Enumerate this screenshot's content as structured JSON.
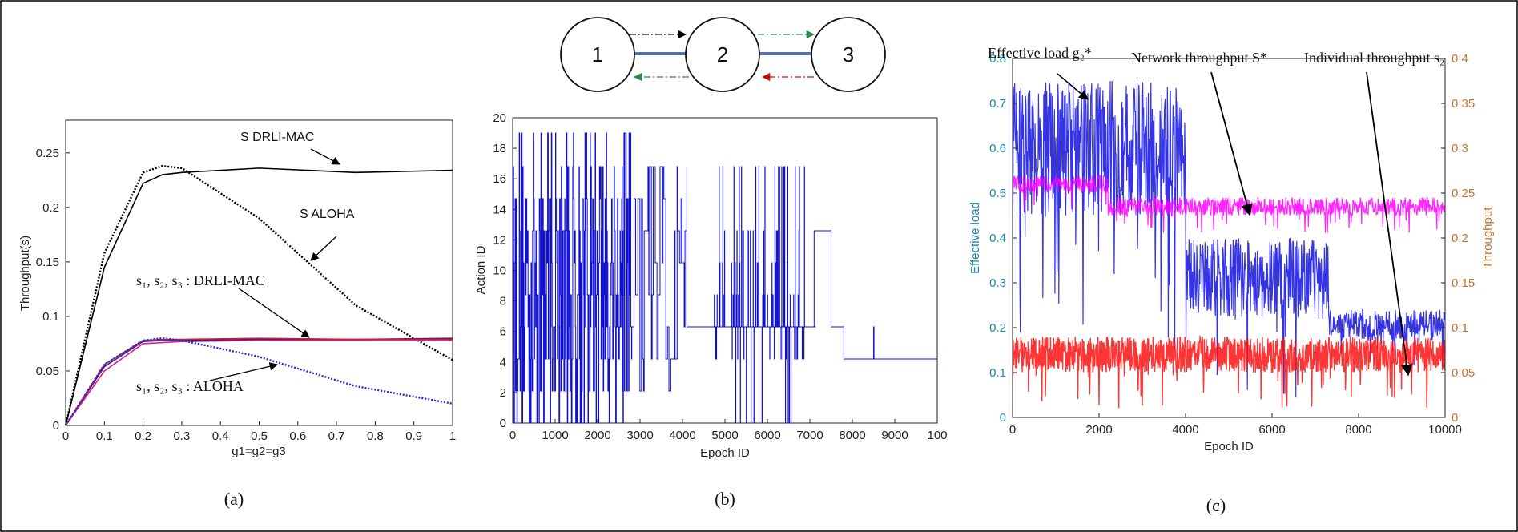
{
  "chart_data": [
    {
      "type": "line",
      "caption": "(a)",
      "xlabel": "g1=g2=g3",
      "ylabel": "Throughput(s)",
      "xlim": [
        0,
        1
      ],
      "ylim": [
        0,
        0.28
      ],
      "xticks": [
        "0",
        "0.1",
        "0.2",
        "0.3",
        "0.4",
        "0.5",
        "0.6",
        "0.7",
        "0.8",
        "0.9",
        "1"
      ],
      "yticks": [
        "0",
        "0.05",
        "0.1",
        "0.15",
        "0.2",
        "0.25"
      ],
      "x": [
        0,
        0.1,
        0.2,
        0.25,
        0.3,
        0.5,
        0.75,
        1.0
      ],
      "series": [
        {
          "name": "S DRLI-MAC",
          "color": "#000000",
          "style": "solid",
          "values": [
            0,
            0.145,
            0.222,
            0.23,
            0.232,
            0.236,
            0.232,
            0.234
          ]
        },
        {
          "name": "S ALOHA",
          "color": "#000000",
          "style": "dotted",
          "values": [
            0,
            0.158,
            0.232,
            0.238,
            0.236,
            0.19,
            0.11,
            0.06
          ]
        },
        {
          "color": "#e0208a",
          "style": "solid",
          "values": [
            0,
            0.05,
            0.075,
            0.076,
            0.077,
            0.078,
            0.078,
            0.078
          ]
        },
        {
          "color": "#2a2a8a",
          "style": "solid",
          "values": [
            0,
            0.054,
            0.077,
            0.078,
            0.078,
            0.079,
            0.079,
            0.08
          ]
        },
        {
          "color": "#d02020",
          "style": "solid",
          "values": [
            0,
            0.056,
            0.078,
            0.079,
            0.079,
            0.08,
            0.079,
            0.079
          ]
        },
        {
          "color": "#2a2ad0",
          "style": "dotted",
          "values": [
            0,
            0.056,
            0.078,
            0.08,
            0.078,
            0.063,
            0.036,
            0.02
          ]
        }
      ],
      "annotations": [
        {
          "text": "S DRLI-MAC"
        },
        {
          "text": "S ALOHA"
        },
        {
          "text": "s₁, s₂, s₃ : DRLI-MAC"
        },
        {
          "text": "s₁, s₂, s₃ : ALOHA"
        }
      ]
    },
    {
      "type": "line",
      "caption": "(b)",
      "xlabel": "Epoch ID",
      "ylabel": "Action ID",
      "xlim": [
        0,
        10000
      ],
      "ylim": [
        0,
        20
      ],
      "xticks": [
        "0",
        "1000",
        "2000",
        "3000",
        "4000",
        "5000",
        "6000",
        "7000",
        "8000",
        "9000",
        "100"
      ],
      "yticks": [
        "0",
        "2",
        "4",
        "6",
        "8",
        "10",
        "12",
        "14",
        "16",
        "18",
        "20"
      ],
      "series": [
        {
          "color": "#1010d0",
          "style": "solid",
          "segments": [
            {
              "x": [
                0,
                2800
              ],
              "y": [
                0,
                19
              ],
              "desc": "dense switching between all actions"
            },
            {
              "x": [
                2800,
                4100
              ],
              "y": [
                0,
                17
              ],
              "desc": "sparse switching"
            },
            {
              "x": [
                4100,
                7100
              ],
              "y": [
                6.3,
                6.3
              ],
              "desc": "mostly constant with spikes"
            },
            {
              "x": [
                7100,
                7500
              ],
              "y": [
                12.6,
                12.6
              ]
            },
            {
              "x": [
                7500,
                7800
              ],
              "y": [
                6.3,
                6.3
              ]
            },
            {
              "x": [
                7800,
                10000
              ],
              "y": [
                4.2,
                4.2
              ]
            }
          ]
        }
      ]
    },
    {
      "type": "line",
      "caption": "(c)",
      "xlabel": "Epoch ID",
      "ylabel": "Effective load",
      "ylabel_right": "Throughput",
      "xlim": [
        0,
        10000
      ],
      "ylim": [
        0,
        0.8
      ],
      "ylim_right": [
        0,
        0.4
      ],
      "xticks": [
        "0",
        "2000",
        "4000",
        "6000",
        "8000",
        "10000"
      ],
      "yticks": [
        "0",
        "0.1",
        "0.2",
        "0.3",
        "0.4",
        "0.5",
        "0.6",
        "0.7",
        "0.8"
      ],
      "yticks_right": [
        "0",
        "0.05",
        "0.1",
        "0.15",
        "0.2",
        "0.25",
        "0.3",
        "0.35",
        "0.4"
      ],
      "series": [
        {
          "axis": "left",
          "color": "#1010e0",
          "levels": [
            [
              0,
              4000,
              0.45,
              0.75
            ],
            [
              4000,
              7300,
              0.22,
              0.4
            ],
            [
              7300,
              10000,
              0.17,
              0.24
            ]
          ]
        },
        {
          "axis": "right",
          "color": "#ff00ff",
          "levels": [
            [
              0,
              2200,
              0.25,
              0.27
            ],
            [
              2200,
              10000,
              0.225,
              0.245
            ]
          ]
        },
        {
          "axis": "right",
          "color": "#ff1010",
          "levels": [
            [
              0,
              10000,
              0.05,
              0.09
            ]
          ]
        }
      ],
      "annotations": [
        {
          "text": "Effective load g₂*"
        },
        {
          "text": "Network throughput S*"
        },
        {
          "text": "Individual throughput s₂"
        }
      ]
    }
  ],
  "diagram": {
    "nodes": [
      "1",
      "2",
      "3"
    ]
  }
}
